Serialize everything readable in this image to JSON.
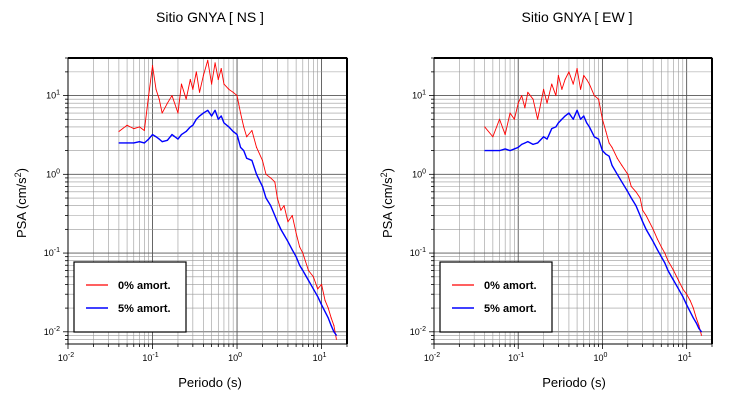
{
  "chart_data": [
    {
      "type": "line",
      "title": "Sitio GNYA [ NS ]",
      "xlabel": "Periodo (s)",
      "ylabel_main": "PSA (cm/s",
      "ylabel_sup": "2",
      "ylabel_close": ")",
      "xscale": "log",
      "yscale": "log",
      "xlim": [
        0.01,
        20
      ],
      "ylim": [
        0.007,
        30
      ],
      "grid": true,
      "legend_position": "bottom-left",
      "x_ticks": [
        {
          "base": "10",
          "exp": "-2",
          "value": 0.01
        },
        {
          "base": "10",
          "exp": "-1",
          "value": 0.1
        },
        {
          "base": "10",
          "exp": "0",
          "value": 1
        },
        {
          "base": "10",
          "exp": "1",
          "value": 10
        }
      ],
      "y_ticks": [
        {
          "base": "10",
          "exp": "-2",
          "value": 0.01
        },
        {
          "base": "10",
          "exp": "-1",
          "value": 0.1
        },
        {
          "base": "10",
          "exp": "0",
          "value": 1
        },
        {
          "base": "10",
          "exp": "1",
          "value": 10
        }
      ],
      "x": [
        0.04,
        0.05,
        0.06,
        0.07,
        0.08,
        0.09,
        0.1,
        0.11,
        0.12,
        0.13,
        0.15,
        0.17,
        0.2,
        0.22,
        0.25,
        0.28,
        0.3,
        0.33,
        0.36,
        0.4,
        0.45,
        0.5,
        0.55,
        0.6,
        0.65,
        0.7,
        0.8,
        0.9,
        1.0,
        1.1,
        1.2,
        1.3,
        1.5,
        1.7,
        2.0,
        2.2,
        2.5,
        2.8,
        3.0,
        3.3,
        3.6,
        4.0,
        4.5,
        5.0,
        5.5,
        6.0,
        7.0,
        8.0,
        9.0,
        10.0,
        11.0,
        12.0,
        13.0,
        14.0,
        15.0
      ],
      "series": [
        {
          "name": "0% amort.",
          "color": "#ff0000",
          "values": [
            3.5,
            4.2,
            3.8,
            4.0,
            3.6,
            10.0,
            24.0,
            12.0,
            9.0,
            6.0,
            8.0,
            10.0,
            6.0,
            14.0,
            9.0,
            16.0,
            12.0,
            20.0,
            11.0,
            18.0,
            28.0,
            14.0,
            26.0,
            16.0,
            22.0,
            14.0,
            12.0,
            11.0,
            10.0,
            6.0,
            4.0,
            3.0,
            3.6,
            2.2,
            1.5,
            1.0,
            0.9,
            0.8,
            0.5,
            0.35,
            0.4,
            0.25,
            0.3,
            0.18,
            0.12,
            0.1,
            0.06,
            0.05,
            0.035,
            0.04,
            0.025,
            0.02,
            0.015,
            0.012,
            0.008
          ]
        },
        {
          "name": "5% amort.",
          "color": "#0000ff",
          "values": [
            2.5,
            2.5,
            2.5,
            2.6,
            2.5,
            2.8,
            3.2,
            3.0,
            2.8,
            2.6,
            2.7,
            3.2,
            2.8,
            3.2,
            3.5,
            4.0,
            4.2,
            5.0,
            5.5,
            6.0,
            6.5,
            5.5,
            6.5,
            5.0,
            5.5,
            4.5,
            4.0,
            3.5,
            3.2,
            2.2,
            2.0,
            1.6,
            1.5,
            1.0,
            0.7,
            0.5,
            0.4,
            0.3,
            0.25,
            0.2,
            0.17,
            0.14,
            0.11,
            0.09,
            0.07,
            0.06,
            0.045,
            0.035,
            0.028,
            0.022,
            0.018,
            0.015,
            0.012,
            0.01,
            0.009
          ]
        }
      ]
    },
    {
      "type": "line",
      "title": "Sitio GNYA [ EW ]",
      "xlabel": "Periodo (s)",
      "ylabel_main": "PSA (cm/s",
      "ylabel_sup": "2",
      "ylabel_close": ")",
      "xscale": "log",
      "yscale": "log",
      "xlim": [
        0.01,
        20
      ],
      "ylim": [
        0.007,
        30
      ],
      "grid": true,
      "legend_position": "bottom-left",
      "x_ticks": [
        {
          "base": "10",
          "exp": "-2",
          "value": 0.01
        },
        {
          "base": "10",
          "exp": "-1",
          "value": 0.1
        },
        {
          "base": "10",
          "exp": "0",
          "value": 1
        },
        {
          "base": "10",
          "exp": "1",
          "value": 10
        }
      ],
      "y_ticks": [
        {
          "base": "10",
          "exp": "-2",
          "value": 0.01
        },
        {
          "base": "10",
          "exp": "-1",
          "value": 0.1
        },
        {
          "base": "10",
          "exp": "0",
          "value": 1
        },
        {
          "base": "10",
          "exp": "1",
          "value": 10
        }
      ],
      "x": [
        0.04,
        0.05,
        0.06,
        0.07,
        0.08,
        0.09,
        0.1,
        0.11,
        0.12,
        0.13,
        0.15,
        0.17,
        0.2,
        0.22,
        0.25,
        0.28,
        0.3,
        0.33,
        0.36,
        0.4,
        0.45,
        0.5,
        0.55,
        0.6,
        0.65,
        0.7,
        0.8,
        0.9,
        1.0,
        1.1,
        1.2,
        1.3,
        1.5,
        1.7,
        2.0,
        2.2,
        2.5,
        2.8,
        3.0,
        3.3,
        3.6,
        4.0,
        4.5,
        5.0,
        5.5,
        6.0,
        7.0,
        8.0,
        9.0,
        10.0,
        11.0,
        12.0,
        13.0,
        14.0,
        15.0
      ],
      "series": [
        {
          "name": "0% amort.",
          "color": "#ff0000",
          "values": [
            4.0,
            3.0,
            5.0,
            3.2,
            6.0,
            5.0,
            8.0,
            10.0,
            7.0,
            11.0,
            9.0,
            5.0,
            12.0,
            8.0,
            14.0,
            10.0,
            18.0,
            12.0,
            16.0,
            20.0,
            14.0,
            22.0,
            12.0,
            18.0,
            16.0,
            14.0,
            10.0,
            9.0,
            5.0,
            3.5,
            2.5,
            2.2,
            1.6,
            1.3,
            1.0,
            0.7,
            0.6,
            0.5,
            0.35,
            0.3,
            0.25,
            0.2,
            0.15,
            0.12,
            0.1,
            0.08,
            0.06,
            0.045,
            0.035,
            0.03,
            0.025,
            0.02,
            0.015,
            0.012,
            0.009
          ]
        },
        {
          "name": "5% amort.",
          "color": "#0000ff",
          "values": [
            2.0,
            2.0,
            2.0,
            2.1,
            2.0,
            2.1,
            2.2,
            2.4,
            2.5,
            2.6,
            2.4,
            2.5,
            3.0,
            2.8,
            3.8,
            4.0,
            4.5,
            5.0,
            5.5,
            6.0,
            5.0,
            6.5,
            5.0,
            5.5,
            4.5,
            4.0,
            3.0,
            2.8,
            2.0,
            1.8,
            1.7,
            1.3,
            1.0,
            0.8,
            0.6,
            0.5,
            0.4,
            0.3,
            0.25,
            0.2,
            0.17,
            0.14,
            0.11,
            0.09,
            0.075,
            0.06,
            0.045,
            0.035,
            0.028,
            0.022,
            0.018,
            0.015,
            0.013,
            0.011,
            0.01
          ]
        }
      ]
    }
  ]
}
